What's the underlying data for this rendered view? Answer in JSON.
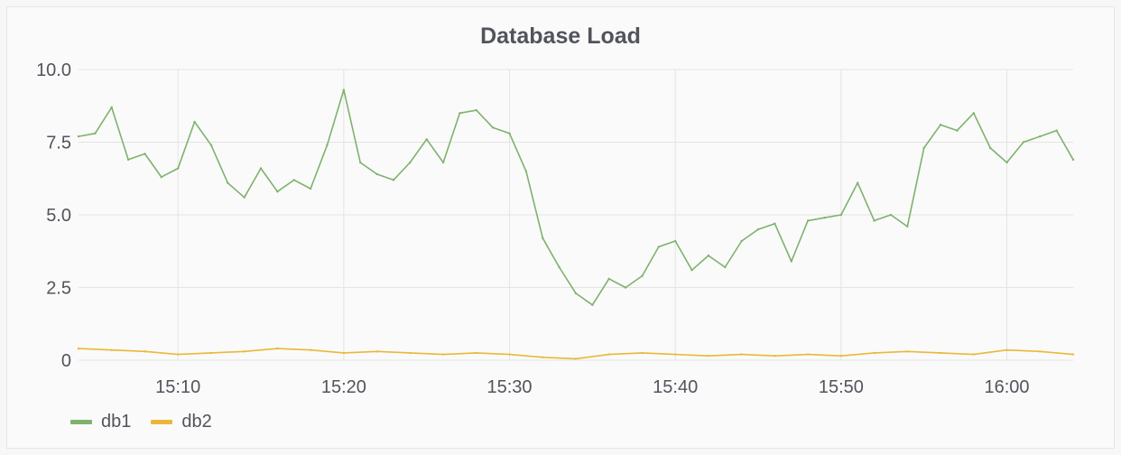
{
  "panel": {
    "title": "Database Load"
  },
  "legend": [
    {
      "name": "db1",
      "color": "#7eb26d"
    },
    {
      "name": "db2",
      "color": "#eab839"
    }
  ],
  "chart_data": {
    "type": "line",
    "title": "Database Load",
    "xlabel": "",
    "ylabel": "",
    "x_range": [
      "15:04",
      "16:04"
    ],
    "ylim": [
      0,
      10
    ],
    "y_ticks": [
      "0",
      "2.5",
      "5.0",
      "7.5",
      "10.0"
    ],
    "x_ticks": [
      "15:10",
      "15:20",
      "15:30",
      "15:40",
      "15:50",
      "16:00"
    ],
    "grid": true,
    "legend_position": "bottom-left",
    "series": [
      {
        "name": "db1",
        "color": "#7eb26d",
        "x": [
          "15:04",
          "15:05",
          "15:06",
          "15:07",
          "15:08",
          "15:09",
          "15:10",
          "15:11",
          "15:12",
          "15:13",
          "15:14",
          "15:15",
          "15:16",
          "15:17",
          "15:18",
          "15:19",
          "15:20",
          "15:21",
          "15:22",
          "15:23",
          "15:24",
          "15:25",
          "15:26",
          "15:27",
          "15:28",
          "15:29",
          "15:30",
          "15:31",
          "15:32",
          "15:33",
          "15:34",
          "15:35",
          "15:36",
          "15:37",
          "15:38",
          "15:39",
          "15:40",
          "15:41",
          "15:42",
          "15:43",
          "15:44",
          "15:45",
          "15:46",
          "15:47",
          "15:48",
          "15:49",
          "15:50",
          "15:51",
          "15:52",
          "15:53",
          "15:54",
          "15:55",
          "15:56",
          "15:57",
          "15:58",
          "15:59",
          "16:00",
          "16:01",
          "16:02",
          "16:03",
          "16:04"
        ],
        "values": [
          7.7,
          7.8,
          8.7,
          6.9,
          7.1,
          6.3,
          6.6,
          8.2,
          7.4,
          6.1,
          5.6,
          6.6,
          5.8,
          6.2,
          5.9,
          7.4,
          9.3,
          6.8,
          6.4,
          6.2,
          6.8,
          7.6,
          6.8,
          8.5,
          8.6,
          8.0,
          7.8,
          6.5,
          4.2,
          3.2,
          2.3,
          1.9,
          2.8,
          2.5,
          2.9,
          3.9,
          4.1,
          3.1,
          3.6,
          3.2,
          4.1,
          4.5,
          4.7,
          3.4,
          4.8,
          4.9,
          5.0,
          6.1,
          4.8,
          5.0,
          4.6,
          7.3,
          8.1,
          7.9,
          8.5,
          7.3,
          6.8,
          7.5,
          7.7,
          7.9,
          6.9
        ]
      },
      {
        "name": "db2",
        "color": "#eab839",
        "x": [
          "15:04",
          "15:06",
          "15:08",
          "15:10",
          "15:12",
          "15:14",
          "15:16",
          "15:18",
          "15:20",
          "15:22",
          "15:24",
          "15:26",
          "15:28",
          "15:30",
          "15:32",
          "15:34",
          "15:36",
          "15:38",
          "15:40",
          "15:42",
          "15:44",
          "15:46",
          "15:48",
          "15:50",
          "15:52",
          "15:54",
          "15:56",
          "15:58",
          "16:00",
          "16:02",
          "16:04"
        ],
        "values": [
          0.4,
          0.35,
          0.3,
          0.2,
          0.25,
          0.3,
          0.4,
          0.35,
          0.25,
          0.3,
          0.25,
          0.2,
          0.25,
          0.2,
          0.1,
          0.05,
          0.2,
          0.25,
          0.2,
          0.15,
          0.2,
          0.15,
          0.2,
          0.15,
          0.25,
          0.3,
          0.25,
          0.2,
          0.35,
          0.3,
          0.2
        ]
      }
    ]
  }
}
